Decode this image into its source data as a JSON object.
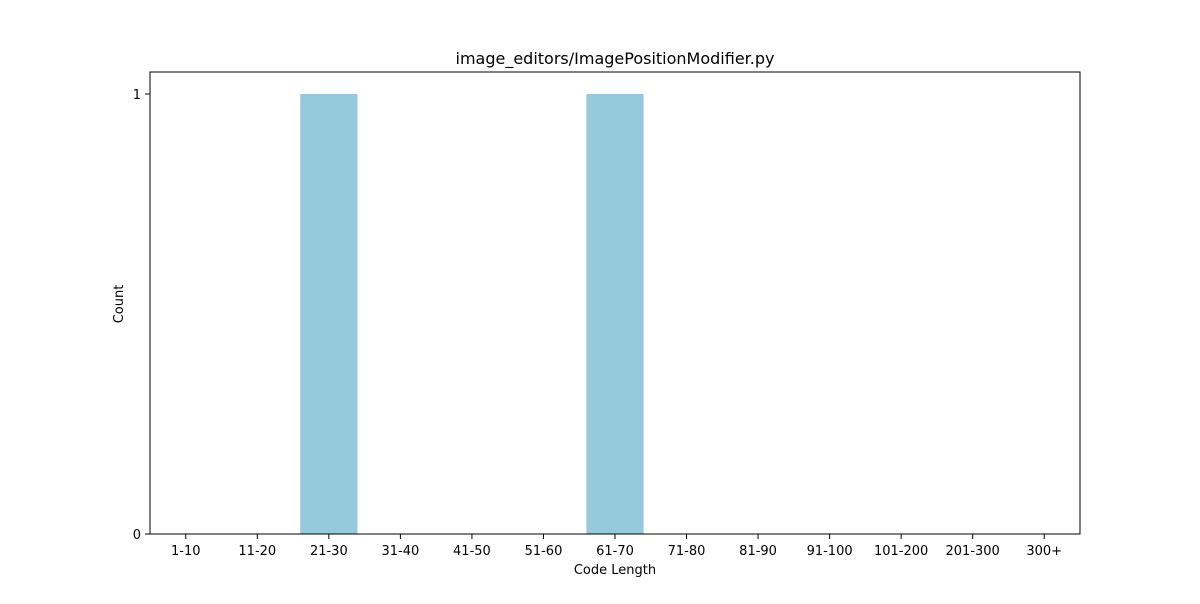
{
  "chart_data": {
    "type": "bar",
    "title": "image_editors/ImagePositionModifier.py",
    "xlabel": "Code Length",
    "ylabel": "Count",
    "categories": [
      "1-10",
      "11-20",
      "21-30",
      "31-40",
      "41-50",
      "51-60",
      "61-70",
      "71-80",
      "81-90",
      "91-100",
      "101-200",
      "201-300",
      "300+"
    ],
    "values": [
      0,
      0,
      1,
      0,
      0,
      0,
      1,
      0,
      0,
      0,
      0,
      0,
      0
    ],
    "ylim": [
      0,
      1.05
    ],
    "yticks": [
      0,
      1
    ],
    "grid": false,
    "legend": "none",
    "bar_color": "#96c9dc"
  }
}
